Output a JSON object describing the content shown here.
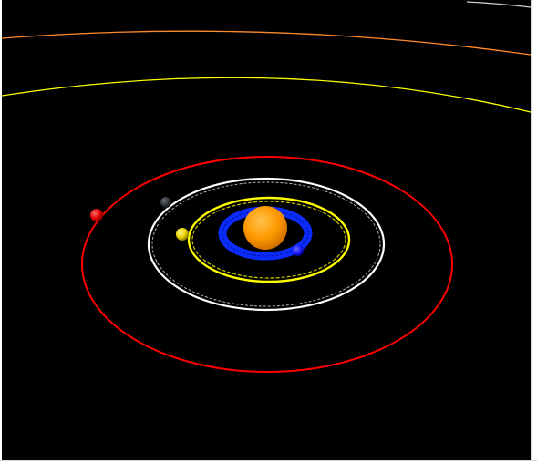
{
  "scene": {
    "background": "#000000",
    "sun": {
      "name": "sun",
      "color": "#ff9900",
      "highlight": "#ffc24d",
      "shade": "#cc6a00"
    },
    "orbits": [
      {
        "name": "orbit-1-blue",
        "color": "#0a2cff",
        "style": "band"
      },
      {
        "name": "orbit-2-yellow",
        "color": "#ffff00",
        "style": "double"
      },
      {
        "name": "orbit-3-white",
        "color": "#ffffff",
        "style": "double"
      },
      {
        "name": "orbit-4-red",
        "color": "#ff0000",
        "style": "single"
      },
      {
        "name": "orbit-5-yellow-outer",
        "color": "#ffff00",
        "style": "arc"
      },
      {
        "name": "orbit-6-orange-outer",
        "color": "#ff8a2a",
        "style": "arc"
      },
      {
        "name": "orbit-7-white-outer",
        "color": "#cfcfcf",
        "style": "arc"
      }
    ],
    "planets": [
      {
        "name": "planet-blue",
        "color": "#1a1aff"
      },
      {
        "name": "planet-yellow",
        "color": "#e6d000"
      },
      {
        "name": "planet-dark",
        "color": "#2a3036"
      },
      {
        "name": "planet-red",
        "color": "#e00000"
      }
    ]
  }
}
